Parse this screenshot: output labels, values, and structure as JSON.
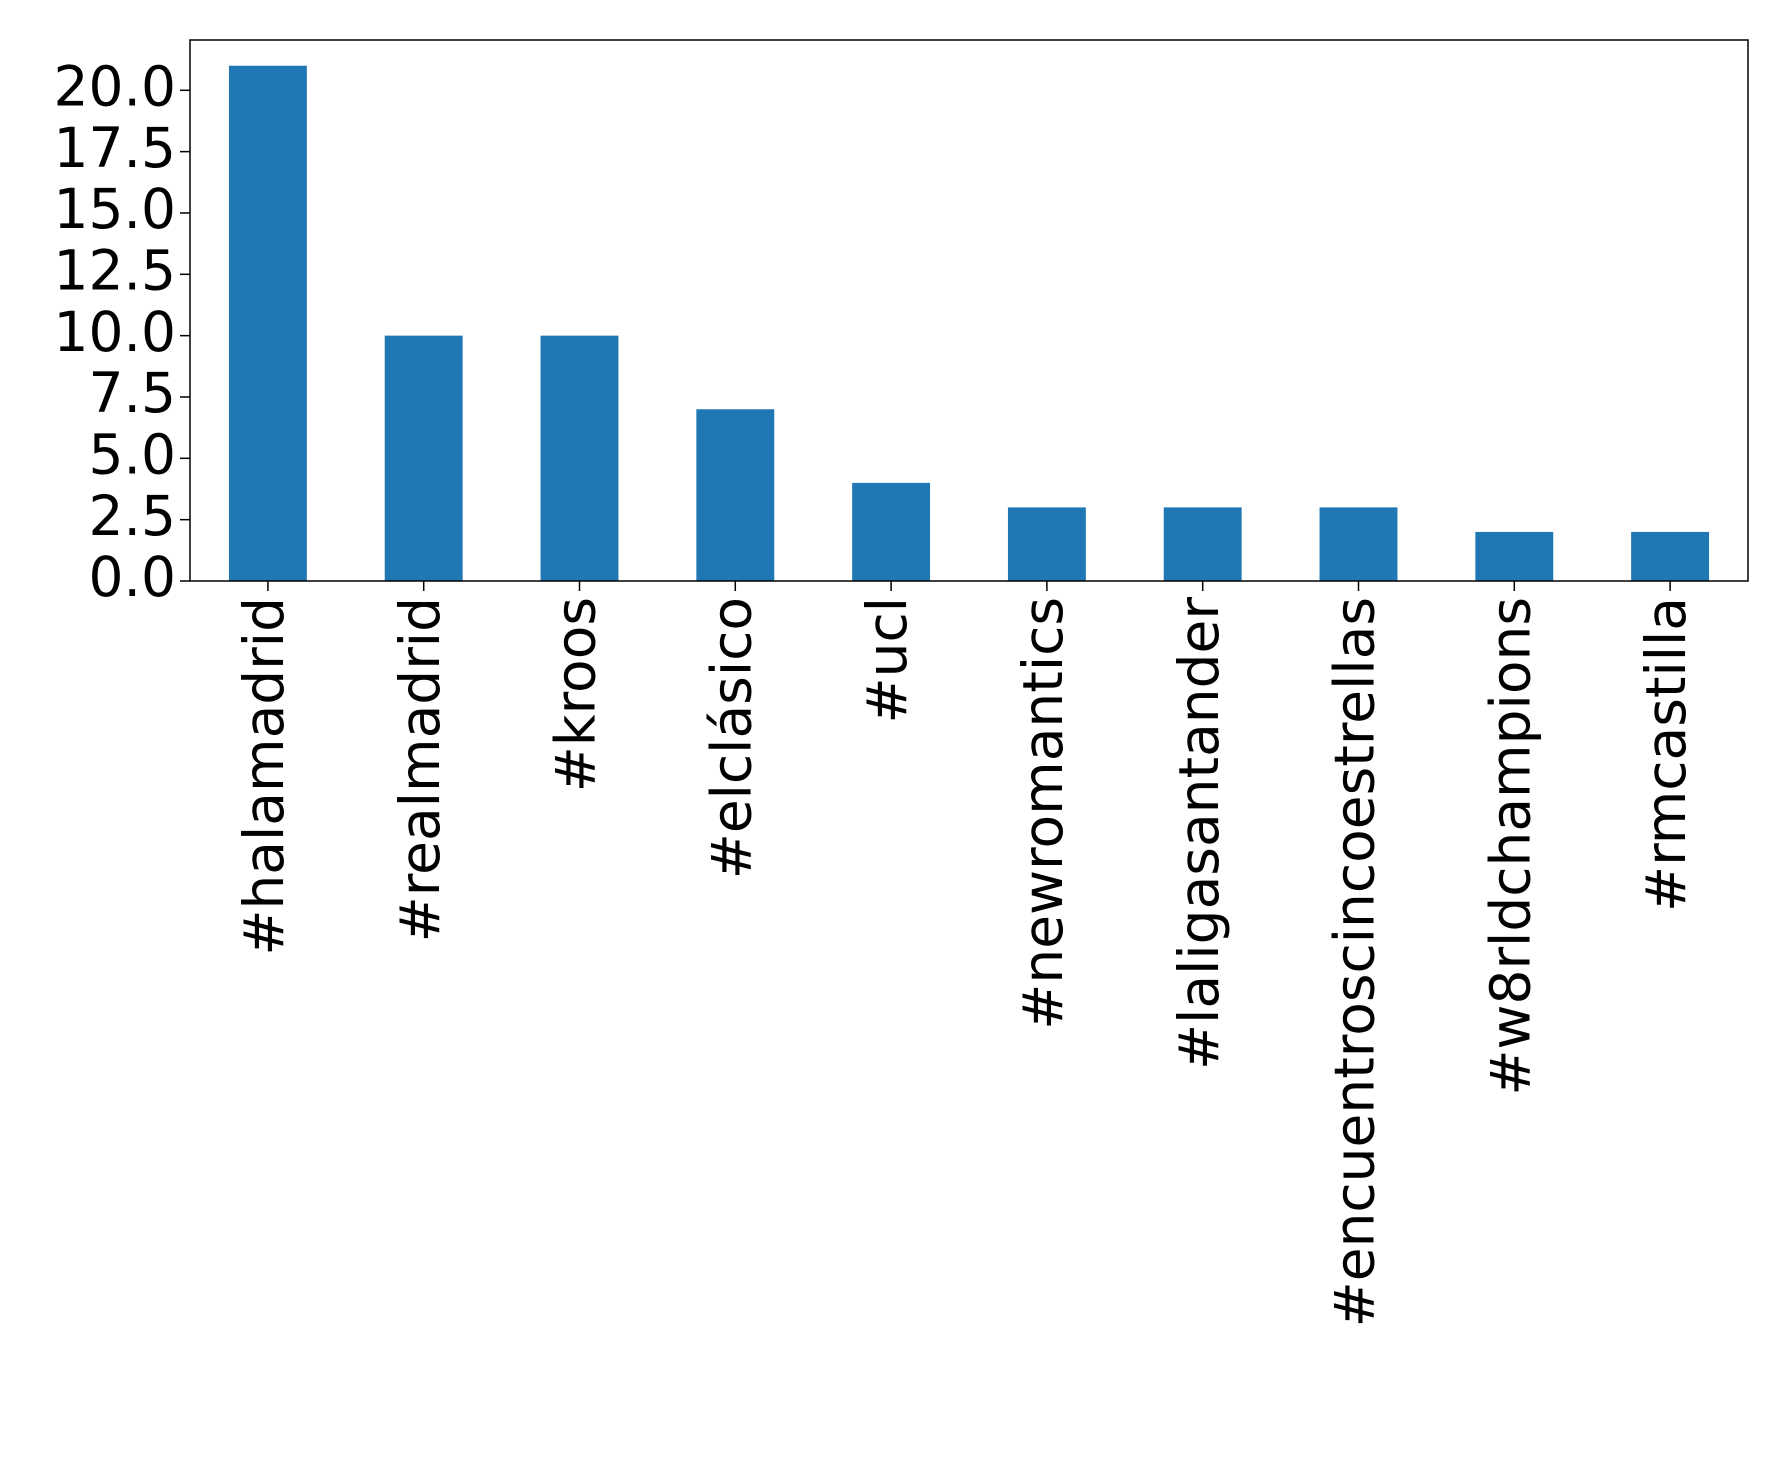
{
  "chart_data": {
    "type": "bar",
    "categories": [
      "#halamadrid",
      "#realmadrid",
      "#kroos",
      "#elclásico",
      "#ucl",
      "#newromantics",
      "#laligasantander",
      "#encuentroscincoestrellas",
      "#w8rldchampions",
      "#rmcastilla"
    ],
    "values": [
      21,
      10,
      10,
      7,
      4,
      3,
      3,
      3,
      2,
      2
    ],
    "color": "#1f77b4",
    "ylim": [
      0,
      22.05
    ],
    "yticks": [
      {
        "value": 0,
        "label": "0.0"
      },
      2.5,
      {
        "value": 5,
        "label": "5.0"
      },
      7.5,
      {
        "value": 10,
        "label": "10.0"
      },
      12.5,
      {
        "value": 15,
        "label": "15.0"
      },
      17.5,
      {
        "value": 20,
        "label": "20.0"
      }
    ],
    "grid": false
  }
}
